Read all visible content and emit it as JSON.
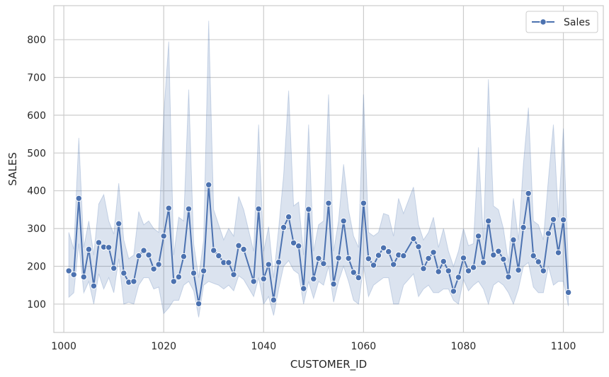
{
  "chart_data": {
    "type": "line",
    "xlabel": "CUSTOMER_ID",
    "ylabel": "SALES",
    "xlim": [
      998,
      1108
    ],
    "ylim": [
      25,
      890
    ],
    "xticks": [
      1000,
      1020,
      1040,
      1060,
      1080,
      1100
    ],
    "yticks": [
      100,
      200,
      300,
      400,
      500,
      600,
      700,
      800
    ],
    "grid": true,
    "legend_position": "top-right",
    "series": [
      {
        "name": "Sales",
        "color": "#4c72b0",
        "marker": "circle",
        "x": [
          1001,
          1002,
          1003,
          1004,
          1005,
          1006,
          1007,
          1008,
          1009,
          1010,
          1011,
          1012,
          1013,
          1014,
          1015,
          1016,
          1017,
          1018,
          1019,
          1020,
          1021,
          1022,
          1023,
          1024,
          1025,
          1026,
          1027,
          1028,
          1029,
          1030,
          1031,
          1032,
          1033,
          1034,
          1035,
          1036,
          1038,
          1039,
          1040,
          1041,
          1042,
          1043,
          1044,
          1045,
          1046,
          1047,
          1048,
          1049,
          1050,
          1051,
          1052,
          1053,
          1054,
          1055,
          1056,
          1057,
          1058,
          1059,
          1060,
          1061,
          1062,
          1063,
          1064,
          1065,
          1066,
          1067,
          1068,
          1070,
          1071,
          1072,
          1073,
          1074,
          1075,
          1076,
          1077,
          1078,
          1079,
          1080,
          1081,
          1082,
          1083,
          1084,
          1085,
          1086,
          1087,
          1088,
          1089,
          1090,
          1091,
          1092,
          1093,
          1094,
          1095,
          1096,
          1097,
          1098,
          1099,
          1100,
          1101
        ],
        "y": [
          188,
          178,
          380,
          172,
          245,
          148,
          263,
          251,
          250,
          195,
          313,
          182,
          158,
          160,
          228,
          242,
          230,
          193,
          205,
          280,
          354,
          160,
          172,
          226,
          352,
          182,
          101,
          188,
          416,
          242,
          228,
          210,
          210,
          178,
          255,
          245,
          160,
          352,
          167,
          205,
          111,
          211,
          303,
          331,
          262,
          254,
          141,
          351,
          167,
          221,
          207,
          367,
          153,
          222,
          320,
          221,
          184,
          170,
          367,
          220,
          203,
          229,
          249,
          239,
          205,
          230,
          228,
          273,
          252,
          194,
          221,
          237,
          186,
          213,
          188,
          134,
          171,
          222,
          188,
          197,
          280,
          210,
          320,
          230,
          240,
          219,
          172,
          270,
          190,
          303,
          393,
          228,
          212,
          188,
          287,
          324,
          236,
          323,
          131
        ],
        "lower": [
          118,
          130,
          260,
          130,
          160,
          100,
          180,
          140,
          170,
          130,
          220,
          100,
          105,
          100,
          150,
          170,
          170,
          140,
          145,
          75,
          90,
          110,
          110,
          150,
          160,
          135,
          65,
          150,
          160,
          155,
          150,
          140,
          150,
          135,
          175,
          165,
          120,
          170,
          100,
          120,
          70,
          140,
          200,
          215,
          190,
          180,
          100,
          160,
          115,
          160,
          150,
          200,
          105,
          160,
          200,
          160,
          110,
          100,
          200,
          120,
          150,
          160,
          170,
          170,
          100,
          100,
          150,
          180,
          120,
          140,
          150,
          130,
          130,
          140,
          140,
          110,
          100,
          165,
          135,
          150,
          160,
          140,
          100,
          150,
          160,
          150,
          130,
          100,
          140,
          200,
          210,
          145,
          130,
          130,
          200,
          150,
          160,
          160,
          95
        ],
        "upper": [
          290,
          245,
          540,
          250,
          320,
          230,
          365,
          390,
          320,
          285,
          420,
          270,
          220,
          230,
          345,
          310,
          320,
          300,
          290,
          600,
          795,
          230,
          330,
          320,
          668,
          260,
          170,
          270,
          850,
          350,
          310,
          270,
          300,
          280,
          385,
          350,
          240,
          575,
          240,
          305,
          170,
          300,
          440,
          665,
          360,
          370,
          230,
          575,
          240,
          310,
          320,
          655,
          240,
          320,
          470,
          350,
          280,
          250,
          655,
          290,
          280,
          290,
          340,
          335,
          280,
          380,
          340,
          410,
          310,
          270,
          290,
          330,
          250,
          300,
          240,
          200,
          240,
          300,
          255,
          260,
          515,
          270,
          695,
          360,
          350,
          300,
          210,
          380,
          270,
          470,
          620,
          320,
          310,
          270,
          430,
          575,
          330,
          565,
          200
        ]
      }
    ]
  }
}
